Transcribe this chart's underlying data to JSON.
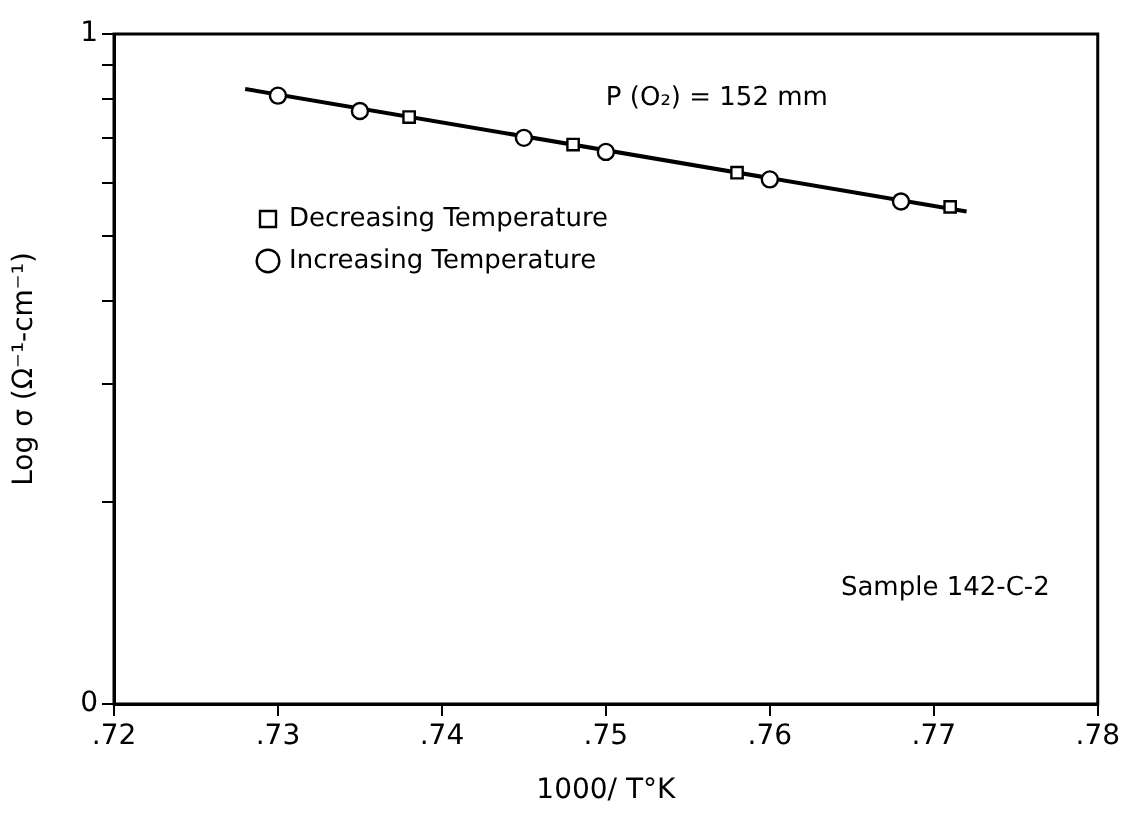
{
  "chart_data": {
    "type": "scatter",
    "xlabel": "1000/ T°K",
    "ylabel": "Log σ (Ω⁻¹-cm⁻¹)",
    "xlim": [
      0.72,
      0.78
    ],
    "xticks": [
      {
        "value": 0.72,
        "label": ".72"
      },
      {
        "value": 0.73,
        "label": ".73"
      },
      {
        "value": 0.74,
        "label": ".74"
      },
      {
        "value": 0.75,
        "label": ".75"
      },
      {
        "value": 0.76,
        "label": ".76"
      },
      {
        "value": 0.77,
        "label": ".77"
      },
      {
        "value": 0.78,
        "label": ".78"
      }
    ],
    "ylim": [
      0,
      1
    ],
    "yticks": [
      0,
      {
        "value": 0.301,
        "label": null
      },
      {
        "value": 0.477,
        "label": null
      },
      {
        "value": 0.602,
        "label": null
      },
      {
        "value": 0.699,
        "label": null
      },
      {
        "value": 0.778,
        "label": null
      },
      {
        "value": 0.845,
        "label": null
      },
      {
        "value": 0.903,
        "label": null
      },
      {
        "value": 0.954,
        "label": null
      },
      1
    ],
    "grid": false,
    "legend": "top left",
    "annotations": [
      "P (O₂) = 152 mm",
      "Sample 142-C-2"
    ],
    "series": [
      {
        "name": "Decreasing Temperature",
        "marker": "square",
        "color": "#000000",
        "x": [
          0.738,
          0.748,
          0.758,
          0.771
        ],
        "values": [
          0.876,
          0.835,
          0.793,
          0.742
        ]
      },
      {
        "name": "Increasing Temperature",
        "marker": "circle",
        "color": "#000000",
        "x": [
          0.73,
          0.735,
          0.745,
          0.75,
          0.76,
          0.768
        ],
        "values": [
          0.908,
          0.885,
          0.845,
          0.824,
          0.783,
          0.75
        ]
      },
      {
        "type": "line",
        "marker": "none",
        "color": "#000000",
        "x": [
          0.728,
          0.772
        ],
        "values": [
          0.918,
          0.735
        ]
      }
    ]
  }
}
